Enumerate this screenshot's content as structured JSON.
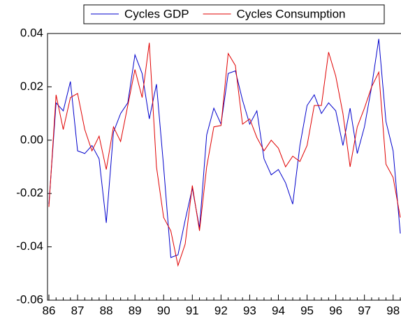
{
  "chart_data": {
    "type": "line",
    "categories": [
      "86",
      null,
      null,
      null,
      "87",
      null,
      null,
      null,
      "88",
      null,
      null,
      null,
      "89",
      null,
      null,
      null,
      "90",
      null,
      null,
      null,
      "91",
      null,
      null,
      null,
      "92",
      null,
      null,
      null,
      "93",
      null,
      null,
      null,
      "94",
      null,
      null,
      null,
      "95",
      null,
      null,
      null,
      "96",
      null,
      null,
      null,
      "97",
      null,
      null,
      null,
      "98",
      null
    ],
    "series": [
      {
        "name": "Cycles GDP",
        "color": "#0000cc",
        "values": [
          -0.024,
          0.014,
          0.011,
          0.022,
          -0.004,
          -0.005,
          -0.002,
          -0.007,
          -0.031,
          0.003,
          0.01,
          0.014,
          0.032,
          0.025,
          0.008,
          0.021,
          -0.01,
          -0.044,
          -0.043,
          -0.03,
          -0.018,
          -0.033,
          0.002,
          0.012,
          0.006,
          0.025,
          0.026,
          0.015,
          0.006,
          0.011,
          -0.007,
          -0.013,
          -0.011,
          -0.016,
          -0.024,
          -0.002,
          0.013,
          0.017,
          0.01,
          0.014,
          0.011,
          -0.002,
          0.012,
          -0.005,
          0.005,
          0.02,
          0.038,
          0.007,
          -0.004,
          -0.035
        ]
      },
      {
        "name": "Cycles Consumption",
        "color": "#e00000",
        "values": [
          -0.025,
          0.017,
          0.004,
          0.016,
          0.0175,
          0.004,
          -0.004,
          0.0015,
          -0.011,
          0.005,
          -0.0005,
          0.013,
          0.0265,
          0.016,
          0.0365,
          -0.01,
          -0.029,
          -0.034,
          -0.047,
          -0.039,
          -0.017,
          -0.034,
          -0.01,
          0.005,
          0.0055,
          0.0325,
          0.028,
          0.006,
          0.008,
          0.001,
          -0.004,
          0.0,
          -0.003,
          -0.01,
          -0.006,
          -0.008,
          -0.002,
          0.013,
          0.013,
          0.033,
          0.024,
          0.01,
          -0.01,
          0.005,
          0.012,
          0.02,
          0.0255,
          -0.009,
          -0.014,
          -0.029
        ]
      }
    ],
    "ylim": [
      -0.06,
      0.04
    ],
    "yticks": [
      -0.06,
      -0.04,
      -0.02,
      {
        "value": 0,
        "label": "0.00"
      },
      0.02,
      0.04
    ],
    "grid": false,
    "legend": "top"
  }
}
